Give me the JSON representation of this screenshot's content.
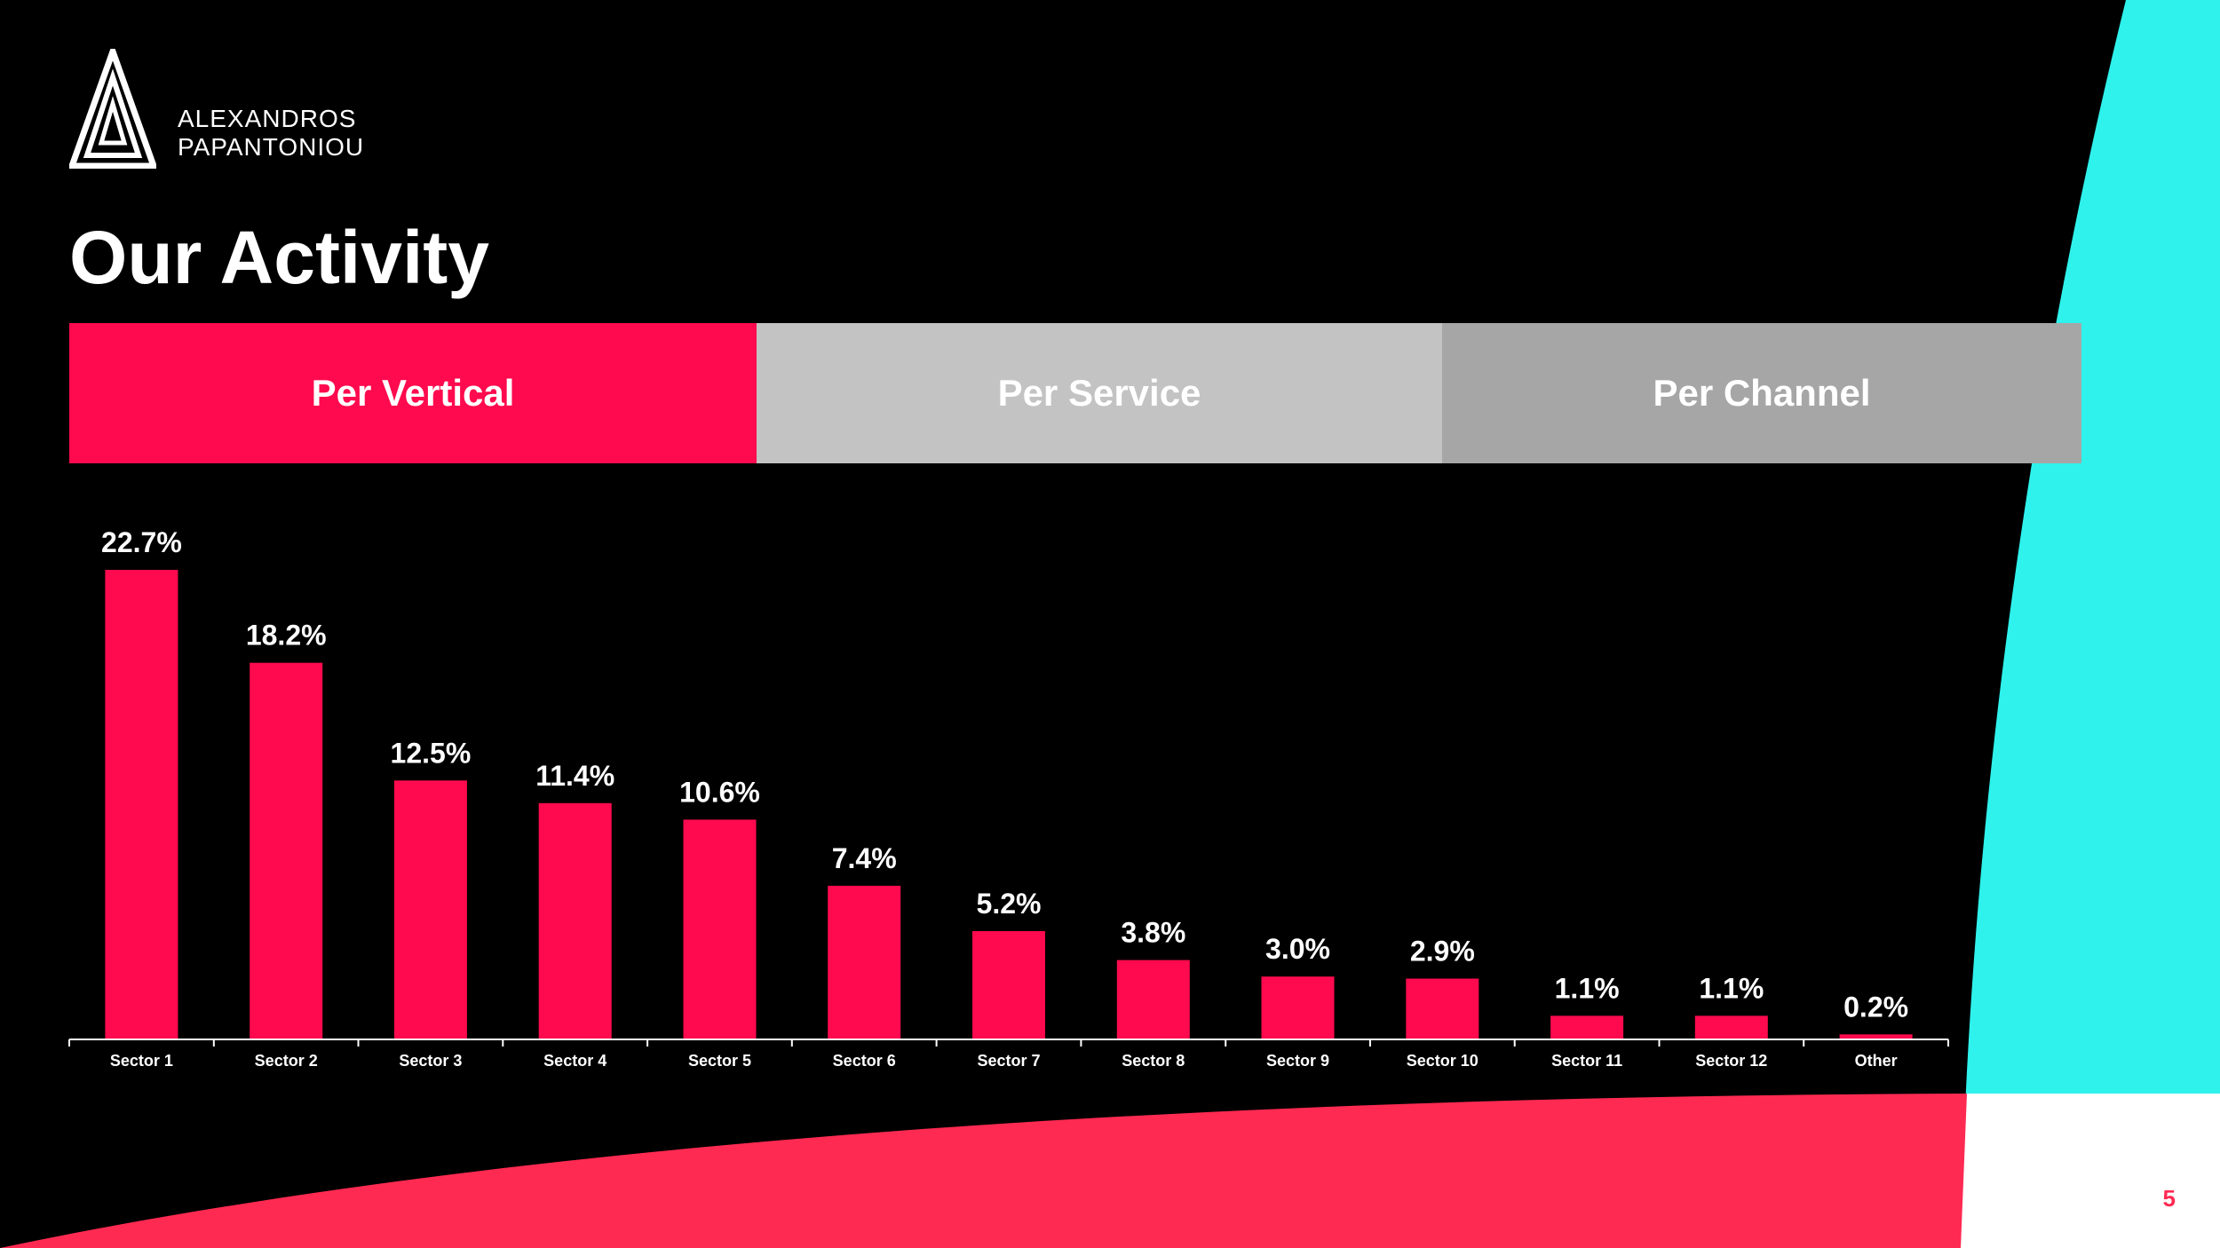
{
  "brand": {
    "line1": "ALEXANDROS",
    "line2": "PAPANTONIOU",
    "logo_icon": "triangle-a-logo-icon"
  },
  "page_title": "Our Activity",
  "tabs": [
    {
      "label": "Per Vertical",
      "color": "#ff0a4e",
      "active": true
    },
    {
      "label": "Per Service",
      "color": "#c3c3c3",
      "active": false
    },
    {
      "label": "Per Channel",
      "color": "#a6a6a6",
      "active": false
    }
  ],
  "colors": {
    "background": "#000000",
    "accent": "#ff0a4e",
    "cyan": "#2ff2ec",
    "bottom_band": "#ff2a52",
    "corner": "#ffffff",
    "page_number": "#ff2a52"
  },
  "page_number": "5",
  "chart_data": {
    "type": "bar",
    "categories": [
      "Sector 1",
      "Sector 2",
      "Sector 3",
      "Sector 4",
      "Sector 5",
      "Sector 6",
      "Sector 7",
      "Sector 8",
      "Sector 9",
      "Sector 10",
      "Sector 11",
      "Sector 12",
      "Other"
    ],
    "values": [
      22.7,
      18.2,
      12.5,
      11.4,
      10.6,
      7.4,
      5.2,
      3.8,
      3.0,
      2.9,
      1.1,
      1.1,
      0.2
    ],
    "labels": [
      "22.7%",
      "18.2%",
      "12.5%",
      "11.4%",
      "10.6%",
      "7.4%",
      "5.2%",
      "3.8%",
      "3.0%",
      "2.9%",
      "1.1%",
      "1.1%",
      "0.2%"
    ],
    "unit": "%",
    "ylim": [
      0,
      22.7
    ],
    "bar_color": "#ff0a4e",
    "grid": false,
    "legend": "none",
    "xlabel": "",
    "ylabel": ""
  }
}
